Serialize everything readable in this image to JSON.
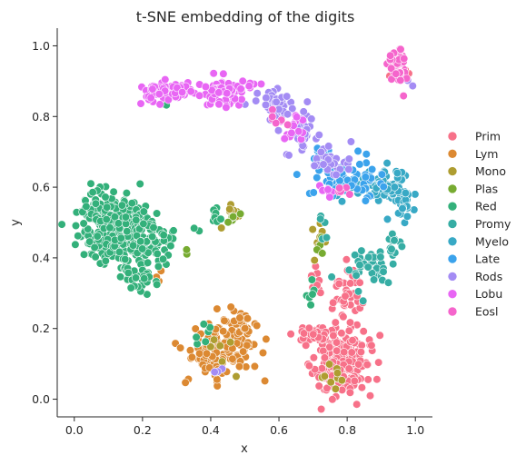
{
  "chart_data": {
    "type": "scatter",
    "title": "t-SNE embedding of the digits",
    "xlabel": "x",
    "ylabel": "y",
    "xlim": [
      -0.05,
      1.05
    ],
    "ylim": [
      -0.05,
      1.05
    ],
    "xticks": [
      "0.0",
      "0.2",
      "0.4",
      "0.6",
      "0.8",
      "1.0"
    ],
    "yticks": [
      "0.0",
      "0.2",
      "0.4",
      "0.6",
      "0.8",
      "1.0"
    ],
    "xtick_values": [
      0.0,
      0.2,
      0.4,
      0.6,
      0.8,
      1.0
    ],
    "ytick_values": [
      0.0,
      0.2,
      0.4,
      0.6,
      0.8,
      1.0
    ],
    "grid": false,
    "legend_position": "right",
    "marker_outline": "#ffffff",
    "series": [
      {
        "name": "Prim",
        "color": "#f77189",
        "clusters": [
          {
            "cx": 0.78,
            "cy": 0.1,
            "sx": 0.04,
            "sy": 0.045,
            "n": 190,
            "seed": 11
          },
          {
            "cx": 0.8,
            "cy": 0.3,
            "sx": 0.02,
            "sy": 0.04,
            "n": 45,
            "seed": 12
          },
          {
            "cx": 0.7,
            "cy": 0.18,
            "sx": 0.045,
            "sy": 0.01,
            "n": 30,
            "seed": 13
          },
          {
            "cx": 0.71,
            "cy": 0.33,
            "sx": 0.01,
            "sy": 0.02,
            "n": 10,
            "seed": 14
          },
          {
            "cx": 0.95,
            "cy": 0.92,
            "sx": 0.015,
            "sy": 0.01,
            "n": 8,
            "seed": 15
          }
        ]
      },
      {
        "name": "Lym",
        "color": "#dc8932",
        "clusters": [
          {
            "cx": 0.46,
            "cy": 0.15,
            "sx": 0.04,
            "sy": 0.04,
            "n": 75,
            "seed": 21
          },
          {
            "cx": 0.39,
            "cy": 0.13,
            "sx": 0.03,
            "sy": 0.04,
            "n": 55,
            "seed": 22
          },
          {
            "cx": 0.48,
            "cy": 0.22,
            "sx": 0.025,
            "sy": 0.02,
            "n": 25,
            "seed": 23
          },
          {
            "cx": 0.24,
            "cy": 0.35,
            "sx": 0.01,
            "sy": 0.01,
            "n": 4,
            "seed": 24
          }
        ]
      },
      {
        "name": "Mono",
        "color": "#ae9d31",
        "clusters": [
          {
            "cx": 0.47,
            "cy": 0.52,
            "sx": 0.015,
            "sy": 0.015,
            "n": 12,
            "seed": 31
          },
          {
            "cx": 0.72,
            "cy": 0.45,
            "sx": 0.015,
            "sy": 0.02,
            "n": 10,
            "seed": 32
          },
          {
            "cx": 0.75,
            "cy": 0.07,
            "sx": 0.03,
            "sy": 0.03,
            "n": 10,
            "seed": 33
          },
          {
            "cx": 0.42,
            "cy": 0.15,
            "sx": 0.03,
            "sy": 0.03,
            "n": 6,
            "seed": 34
          }
        ]
      },
      {
        "name": "Plas",
        "color": "#77ab31",
        "clusters": [
          {
            "cx": 0.47,
            "cy": 0.52,
            "sx": 0.012,
            "sy": 0.015,
            "n": 6,
            "seed": 41
          },
          {
            "cx": 0.73,
            "cy": 0.44,
            "sx": 0.01,
            "sy": 0.015,
            "n": 4,
            "seed": 42
          },
          {
            "cx": 0.33,
            "cy": 0.4,
            "sx": 0.01,
            "sy": 0.01,
            "n": 2,
            "seed": 43
          }
        ]
      },
      {
        "name": "Red",
        "color": "#33b07a",
        "clusters": [
          {
            "cx": 0.1,
            "cy": 0.49,
            "sx": 0.05,
            "sy": 0.045,
            "n": 230,
            "seed": 51
          },
          {
            "cx": 0.2,
            "cy": 0.45,
            "sx": 0.05,
            "sy": 0.04,
            "n": 130,
            "seed": 52
          },
          {
            "cx": 0.19,
            "cy": 0.34,
            "sx": 0.025,
            "sy": 0.02,
            "n": 30,
            "seed": 53
          },
          {
            "cx": 0.42,
            "cy": 0.52,
            "sx": 0.015,
            "sy": 0.01,
            "n": 8,
            "seed": 54
          },
          {
            "cx": 0.26,
            "cy": 0.84,
            "sx": 0.01,
            "sy": 0.01,
            "n": 3,
            "seed": 55
          },
          {
            "cx": 0.7,
            "cy": 0.3,
            "sx": 0.01,
            "sy": 0.03,
            "n": 6,
            "seed": 56
          },
          {
            "cx": 0.38,
            "cy": 0.19,
            "sx": 0.02,
            "sy": 0.02,
            "n": 6,
            "seed": 57
          }
        ]
      },
      {
        "name": "Promy",
        "color": "#36ada4",
        "clusters": [
          {
            "cx": 0.86,
            "cy": 0.38,
            "sx": 0.04,
            "sy": 0.03,
            "n": 45,
            "seed": 61
          },
          {
            "cx": 0.93,
            "cy": 0.44,
            "sx": 0.015,
            "sy": 0.02,
            "n": 12,
            "seed": 62
          },
          {
            "cx": 0.72,
            "cy": 0.47,
            "sx": 0.01,
            "sy": 0.02,
            "n": 5,
            "seed": 63
          }
        ]
      },
      {
        "name": "Myelo",
        "color": "#38a9c5",
        "clusters": [
          {
            "cx": 0.93,
            "cy": 0.6,
            "sx": 0.03,
            "sy": 0.03,
            "n": 70,
            "seed": 71
          },
          {
            "cx": 0.84,
            "cy": 0.6,
            "sx": 0.05,
            "sy": 0.02,
            "n": 35,
            "seed": 72
          },
          {
            "cx": 0.97,
            "cy": 0.54,
            "sx": 0.012,
            "sy": 0.02,
            "n": 15,
            "seed": 73
          }
        ]
      },
      {
        "name": "Late",
        "color": "#3ba3ec",
        "clusters": [
          {
            "cx": 0.8,
            "cy": 0.63,
            "sx": 0.05,
            "sy": 0.03,
            "n": 60,
            "seed": 81
          },
          {
            "cx": 0.73,
            "cy": 0.68,
            "sx": 0.02,
            "sy": 0.02,
            "n": 20,
            "seed": 82
          }
        ]
      },
      {
        "name": "Rods",
        "color": "#a48cf4",
        "clusters": [
          {
            "cx": 0.58,
            "cy": 0.84,
            "sx": 0.03,
            "sy": 0.02,
            "n": 45,
            "seed": 91
          },
          {
            "cx": 0.67,
            "cy": 0.76,
            "sx": 0.025,
            "sy": 0.03,
            "n": 40,
            "seed": 92
          },
          {
            "cx": 0.75,
            "cy": 0.67,
            "sx": 0.025,
            "sy": 0.025,
            "n": 30,
            "seed": 93
          },
          {
            "cx": 0.42,
            "cy": 0.09,
            "sx": 0.01,
            "sy": 0.01,
            "n": 3,
            "seed": 94
          },
          {
            "cx": 0.98,
            "cy": 0.89,
            "sx": 0.008,
            "sy": 0.008,
            "n": 2,
            "seed": 95
          }
        ]
      },
      {
        "name": "Lobu",
        "color": "#e866f4",
        "clusters": [
          {
            "cx": 0.28,
            "cy": 0.87,
            "sx": 0.04,
            "sy": 0.015,
            "n": 70,
            "seed": 101
          },
          {
            "cx": 0.44,
            "cy": 0.87,
            "sx": 0.04,
            "sy": 0.018,
            "n": 75,
            "seed": 102
          },
          {
            "cx": 0.64,
            "cy": 0.76,
            "sx": 0.02,
            "sy": 0.02,
            "n": 15,
            "seed": 103
          },
          {
            "cx": 0.73,
            "cy": 0.59,
            "sx": 0.015,
            "sy": 0.015,
            "n": 8,
            "seed": 104
          }
        ]
      },
      {
        "name": "Eosl",
        "color": "#f565cc",
        "clusters": [
          {
            "cx": 0.95,
            "cy": 0.95,
            "sx": 0.015,
            "sy": 0.022,
            "n": 55,
            "seed": 111
          },
          {
            "cx": 0.59,
            "cy": 0.8,
            "sx": 0.02,
            "sy": 0.015,
            "n": 6,
            "seed": 112
          },
          {
            "cx": 0.78,
            "cy": 0.6,
            "sx": 0.02,
            "sy": 0.02,
            "n": 5,
            "seed": 113
          }
        ]
      }
    ]
  }
}
